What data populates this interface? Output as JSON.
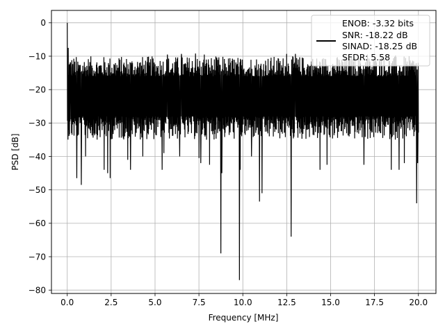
{
  "chart_data": {
    "type": "line",
    "xlabel": "Frequency [MHz]",
    "ylabel": "PSD [dB]",
    "xlim": [
      -0.9,
      21.0
    ],
    "ylim": [
      -81,
      3.7
    ],
    "xticks": [
      0.0,
      2.5,
      5.0,
      7.5,
      10.0,
      12.5,
      15.0,
      17.5,
      20.0
    ],
    "xtick_labels": [
      "0.0",
      "2.5",
      "5.0",
      "7.5",
      "10.0",
      "12.5",
      "15.0",
      "17.5",
      "20.0"
    ],
    "yticks": [
      0,
      -10,
      -20,
      -30,
      -40,
      -50,
      -60,
      -70,
      -80
    ],
    "ytick_labels": [
      "0",
      "−10",
      "−20",
      "−30",
      "−40",
      "−50",
      "−60",
      "−70",
      "−80"
    ],
    "grid": true,
    "legend_position": "top-right",
    "legend_lines": [
      "ENOB: -3.32 bits",
      "SNR: -18.22 dB",
      "SINAD: -18.25 dB",
      "SFDR: 5.58"
    ],
    "line_color": "#000000",
    "series": [
      {
        "x_start": 0.0,
        "x_end": 20.0,
        "noise_floor_mean": -22,
        "noise_upper_band": [
          -16,
          -10
        ],
        "noise_lower_band": [
          -28,
          -35
        ],
        "peaks": [
          [
            0.0,
            0.0
          ],
          [
            0.06,
            -7.5
          ],
          [
            0.18,
            -12
          ]
        ],
        "dips": [
          [
            0.55,
            -46.5
          ],
          [
            0.8,
            -48.5
          ],
          [
            1.05,
            -40
          ],
          [
            2.1,
            -44
          ],
          [
            2.3,
            -45
          ],
          [
            2.45,
            -46.5
          ],
          [
            3.45,
            -41
          ],
          [
            3.6,
            -44
          ],
          [
            4.3,
            -40
          ],
          [
            5.4,
            -44
          ],
          [
            5.5,
            -39
          ],
          [
            6.4,
            -40
          ],
          [
            7.5,
            -40.5
          ],
          [
            7.6,
            -42
          ],
          [
            8.1,
            -42.5
          ],
          [
            8.75,
            -69
          ],
          [
            8.8,
            -45
          ],
          [
            9.8,
            -77
          ],
          [
            9.85,
            -44
          ],
          [
            10.5,
            -40
          ],
          [
            10.95,
            -53.5
          ],
          [
            11.1,
            -51
          ],
          [
            12.75,
            -64
          ],
          [
            14.4,
            -44
          ],
          [
            14.8,
            -42.5
          ],
          [
            16.9,
            -42.5
          ],
          [
            18.45,
            -44
          ],
          [
            18.9,
            -44
          ],
          [
            19.2,
            -42
          ],
          [
            19.9,
            -54
          ],
          [
            19.95,
            -42
          ]
        ],
        "spikes": [
          [
            5.5,
            -9
          ],
          [
            5.7,
            -9.5
          ],
          [
            6.5,
            -9.3
          ],
          [
            7.3,
            -9.2
          ],
          [
            7.8,
            -9.5
          ],
          [
            12.5,
            -9.3
          ],
          [
            13.0,
            -9.3
          ],
          [
            17.1,
            -9.5
          ],
          [
            17.9,
            -10
          ],
          [
            18.7,
            -9.8
          ]
        ]
      }
    ]
  }
}
